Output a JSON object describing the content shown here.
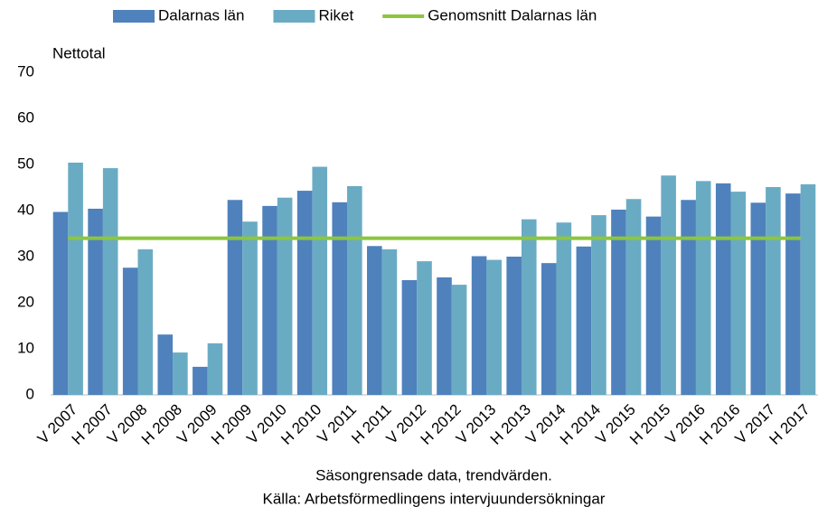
{
  "chart_data": {
    "type": "bar",
    "y_label": "Nettotal",
    "notes": [
      "Säsongrensade data, trendvärden.",
      "Källa: Arbetsförmedlingens intervjuundersökningar"
    ],
    "categories": [
      "V 2007",
      "H 2007",
      "V 2008",
      "H 2008",
      "V 2009",
      "H 2009",
      "V 2010",
      "H 2010",
      "V 2011",
      "H 2011",
      "V 2012",
      "H 2012",
      "V 2013",
      "H 2013",
      "V 2014",
      "H 2014",
      "V 2015",
      "H 2015",
      "V 2016",
      "H 2016",
      "V 2017",
      "H 2017"
    ],
    "series": [
      {
        "name": "Dalarnas län",
        "color": "#4f81bd",
        "type": "bar",
        "values": [
          39.7,
          40.4,
          27.6,
          13.1,
          6.1,
          42.3,
          41.0,
          44.3,
          41.8,
          32.3,
          24.9,
          25.5,
          30.1,
          30.0,
          28.6,
          32.2,
          40.2,
          38.7,
          42.3,
          45.9,
          41.7,
          43.7
        ]
      },
      {
        "name": "Riket",
        "color": "#6aabc4",
        "type": "bar",
        "values": [
          50.4,
          49.2,
          31.6,
          9.2,
          11.2,
          37.6,
          42.8,
          49.5,
          45.3,
          31.6,
          29.0,
          23.9,
          29.3,
          38.1,
          37.4,
          39.0,
          42.5,
          47.6,
          46.4,
          44.1,
          45.1,
          45.7
        ]
      },
      {
        "name": "Genomsnitt Dalarnas län",
        "color": "#8cc63f",
        "type": "line",
        "values": [
          34,
          34,
          34,
          34,
          34,
          34,
          34,
          34,
          34,
          34,
          34,
          34,
          34,
          34,
          34,
          34,
          34,
          34,
          34,
          34,
          34,
          34
        ]
      }
    ],
    "ylim": [
      0,
      70
    ],
    "yticks": [
      0,
      10,
      20,
      30,
      40,
      50,
      60,
      70
    ],
    "grid": false
  }
}
